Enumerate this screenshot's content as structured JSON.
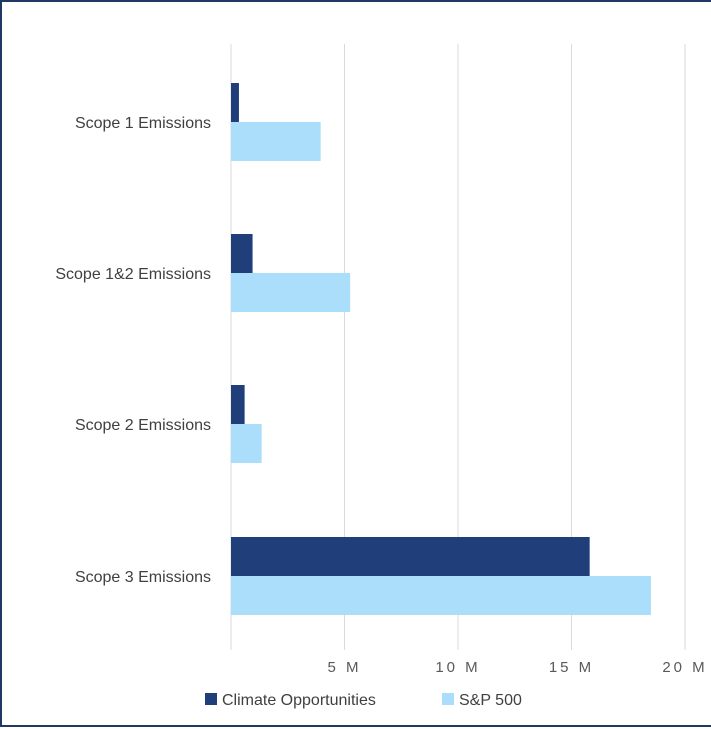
{
  "chart_data": {
    "type": "bar",
    "orientation": "horizontal",
    "categories": [
      "Scope 1 Emissions",
      "Scope 1&2 Emissions",
      "Scope 2 Emissions",
      "Scope 3 Emissions"
    ],
    "series": [
      {
        "name": "Climate Opportunities",
        "color": "#1f3e7a",
        "values": [
          0.35,
          0.95,
          0.6,
          15.8
        ]
      },
      {
        "name": "S&P 500",
        "color": "#aadefb",
        "values": [
          3.95,
          5.25,
          1.35,
          18.5
        ]
      }
    ],
    "x_ticks": [
      "5 M",
      "10 M",
      "15 M",
      "20 M"
    ],
    "x_tick_values": [
      5,
      10,
      15,
      20
    ],
    "xlim": [
      0,
      20
    ],
    "grid": true,
    "legend_position": "bottom",
    "title": "",
    "xlabel": "",
    "ylabel": ""
  }
}
